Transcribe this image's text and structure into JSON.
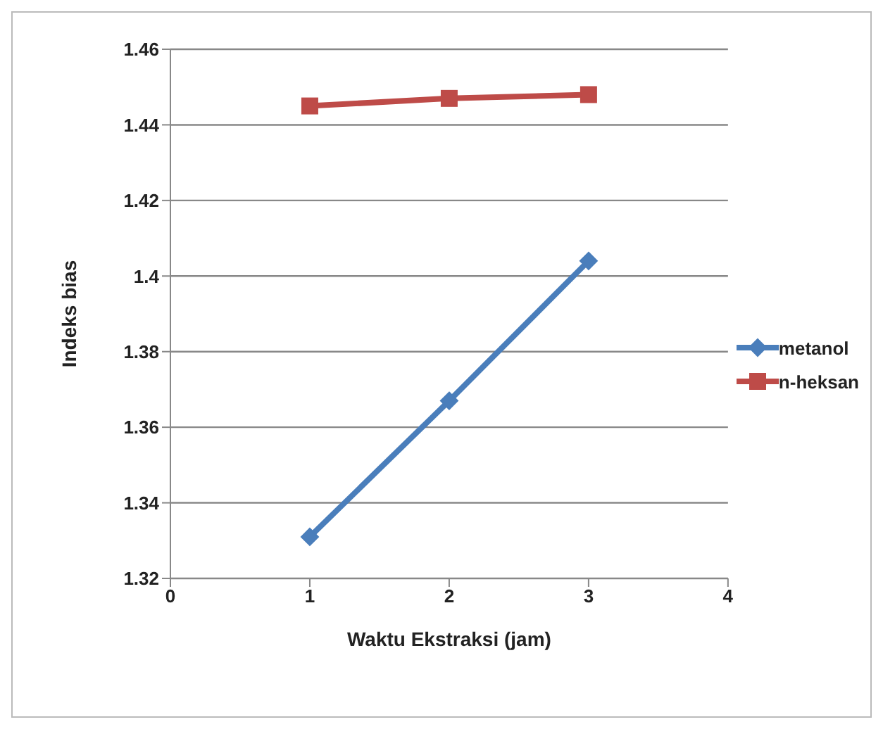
{
  "chart_data": {
    "type": "line",
    "xlabel": "Waktu Ekstraksi (jam)",
    "ylabel": "Indeks bias",
    "x": [
      1,
      2,
      3
    ],
    "series": [
      {
        "name": "metanol",
        "color": "#4a7ebb",
        "values": [
          1.331,
          1.367,
          1.404
        ],
        "marker": "diamond"
      },
      {
        "name": "n-heksan",
        "color": "#be4b48",
        "values": [
          1.445,
          1.447,
          1.448
        ],
        "marker": "square"
      }
    ],
    "xlim": [
      0,
      4
    ],
    "xticks": [
      0,
      1,
      2,
      3,
      4
    ],
    "ylim": [
      1.32,
      1.46
    ],
    "yticks": [
      1.32,
      1.34,
      1.36,
      1.38,
      1.4,
      1.42,
      1.44,
      1.46
    ],
    "grid": "y",
    "legend": "right"
  }
}
